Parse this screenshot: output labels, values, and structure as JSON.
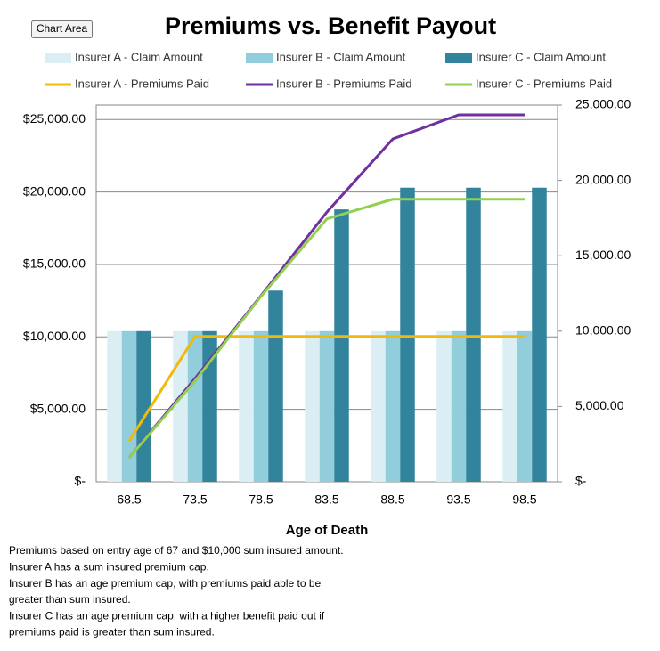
{
  "chart_area_label": "Chart Area",
  "chart_data": {
    "type": "bar_line",
    "title": "Premiums vs. Benefit Payout",
    "x_label": "Age of Death",
    "categories": [
      "68.5",
      "73.5",
      "78.5",
      "83.5",
      "88.5",
      "93.5",
      "98.5"
    ],
    "series": [
      {
        "name": "Insurer A - Claim Amount",
        "type": "bar",
        "color": "#daeef3",
        "values": [
          10400,
          10400,
          10400,
          10400,
          10400,
          10400,
          10400
        ]
      },
      {
        "name": "Insurer B - Claim Amount",
        "type": "bar",
        "color": "#92cddc",
        "values": [
          10400,
          10400,
          10400,
          10400,
          10400,
          10400,
          10400
        ]
      },
      {
        "name": "Insurer C - Claim Amount",
        "type": "bar",
        "color": "#31849b",
        "values": [
          10400,
          10400,
          13200,
          18800,
          20300,
          20300,
          20300
        ]
      },
      {
        "name": "Insurer A - Premiums Paid",
        "type": "line",
        "axis": "y2",
        "color": "#f2b90c",
        "values": [
          2700,
          9650,
          9650,
          9650,
          9650,
          9650,
          9650
        ]
      },
      {
        "name": "Insurer B - Premiums Paid",
        "type": "line",
        "axis": "y2",
        "color": "#7030a0",
        "values": [
          1600,
          6860,
          12350,
          17900,
          22750,
          24350,
          24350
        ]
      },
      {
        "name": "Insurer C - Premiums Paid",
        "type": "line",
        "axis": "y2",
        "color": "#92d050",
        "values": [
          1600,
          6700,
          12300,
          17450,
          18750,
          18750,
          18750
        ]
      }
    ],
    "ylim": [
      0,
      26000
    ],
    "yticks": [
      {
        "value": 0,
        "label": "$-"
      },
      {
        "value": 5000,
        "label": "$5,000.00"
      },
      {
        "value": 10000,
        "label": "$10,000.00"
      },
      {
        "value": 15000,
        "label": "$15,000.00"
      },
      {
        "value": 20000,
        "label": "$20,000.00"
      },
      {
        "value": 25000,
        "label": "$25,000.00"
      }
    ],
    "y2lim": [
      0,
      25000
    ],
    "y2ticks": [
      {
        "value": 0,
        "label": "$-"
      },
      {
        "value": 5000,
        "label": "5,000.00"
      },
      {
        "value": 10000,
        "label": "10,000.00"
      },
      {
        "value": 15000,
        "label": "15,000.00"
      },
      {
        "value": 20000,
        "label": "20,000.00"
      },
      {
        "value": 25000,
        "label": "25,000.00"
      }
    ],
    "grid": true,
    "notes": [
      "Premiums based on entry age of 67 and $10,000 sum insured amount.",
      "Insurer A has a sum insured premium cap.",
      "Insurer B has an age premium cap, with premiums paid able to be",
      "greater than sum insured.",
      "Insurer C has an age premium cap, with a higher benefit paid out if",
      "premiums paid is greater than sum insured."
    ]
  }
}
